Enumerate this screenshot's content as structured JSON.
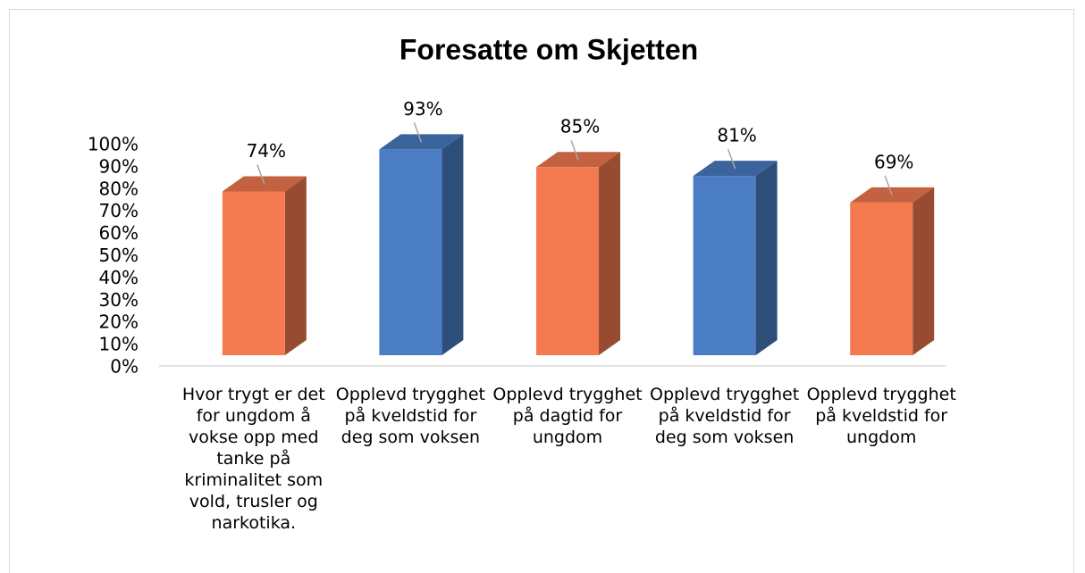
{
  "chart_data": {
    "type": "bar3d",
    "title": "Foresatte om Skjetten",
    "categories": [
      "Hvor trygt er det for ungdom å vokse opp med tanke på kriminalitet som vold, trusler og narkotika.",
      "Opplevd trygghet på kveldstid for deg som voksen",
      "Opplevd trygghet på dagtid for ungdom",
      "Opplevd trygghet på kveldstid for deg som voksen",
      "Opplevd trygghet på kveldstid for ungdom"
    ],
    "values": [
      74,
      93,
      85,
      81,
      69
    ],
    "value_labels": [
      "74%",
      "93%",
      "85%",
      "81%",
      "69%"
    ],
    "colors": [
      "#f47a50",
      "#4a7dc4",
      "#f47a50",
      "#4a7dc4",
      "#f47a50"
    ],
    "ylim": [
      0,
      100
    ],
    "yticks": [
      {
        "value": 0,
        "label": "0%"
      },
      {
        "value": 10,
        "label": "10%"
      },
      {
        "value": 20,
        "label": "20%"
      },
      {
        "value": 30,
        "label": "30%"
      },
      {
        "value": 40,
        "label": "40%"
      },
      {
        "value": 50,
        "label": "50%"
      },
      {
        "value": 60,
        "label": "60%"
      },
      {
        "value": 70,
        "label": "70%"
      },
      {
        "value": 80,
        "label": "80%"
      },
      {
        "value": 90,
        "label": "90%"
      },
      {
        "value": 100,
        "label": "100%"
      }
    ],
    "grid": false
  }
}
